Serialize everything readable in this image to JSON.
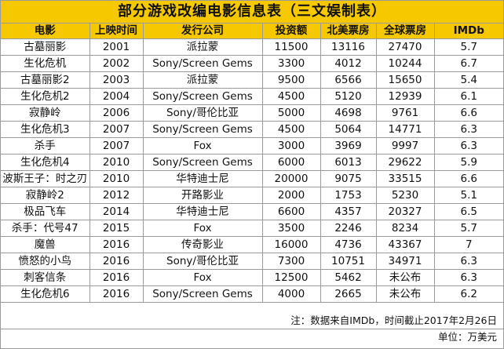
{
  "title": "部分游戏改编电影信息表（三文娱制表）",
  "colors": {
    "header_bg": "#f5c800",
    "border": "#9a9a9a"
  },
  "columns": [
    "电影",
    "上映时间",
    "发行公司",
    "投资额",
    "北美票房",
    "全球票房",
    "IMDb"
  ],
  "rows": [
    [
      "古墓丽影",
      "2001",
      "派拉蒙",
      "11500",
      "13116",
      "27470",
      "5.7"
    ],
    [
      "生化危机",
      "2002",
      "Sony/Screen Gems",
      "3300",
      "4012",
      "10244",
      "6.7"
    ],
    [
      "古墓丽影2",
      "2003",
      "派拉蒙",
      "9500",
      "6566",
      "15650",
      "5.4"
    ],
    [
      "生化危机2",
      "2004",
      "Sony/Screen Gems",
      "4500",
      "5120",
      "12939",
      "6.1"
    ],
    [
      "寂静岭",
      "2006",
      "Sony/哥伦比亚",
      "5000",
      "4698",
      "9761",
      "6.6"
    ],
    [
      "生化危机3",
      "2007",
      "Sony/Screen Gems",
      "4500",
      "5064",
      "14771",
      "6.3"
    ],
    [
      "杀手",
      "2007",
      "Fox",
      "3000",
      "3969",
      "9997",
      "6.3"
    ],
    [
      "生化危机4",
      "2010",
      "Sony/Screen Gems",
      "6000",
      "6013",
      "29622",
      "5.9"
    ],
    [
      "波斯王子：时之刃",
      "2010",
      "华特迪士尼",
      "20000",
      "9075",
      "33515",
      "6.6"
    ],
    [
      "寂静岭2",
      "2012",
      "开路影业",
      "2000",
      "1753",
      "5230",
      "5.1"
    ],
    [
      "极品飞车",
      "2014",
      "华特迪士尼",
      "6600",
      "4357",
      "20327",
      "6.5"
    ],
    [
      "杀手：代号47",
      "2015",
      "Fox",
      "3500",
      "2246",
      "8234",
      "5.7"
    ],
    [
      "魔兽",
      "2016",
      "传奇影业",
      "16000",
      "4736",
      "43367",
      "7"
    ],
    [
      "愤怒的小鸟",
      "2016",
      "Sony/哥伦比亚",
      "7300",
      "10751",
      "34971",
      "6.3"
    ],
    [
      "刺客信条",
      "2016",
      "Fox",
      "12500",
      "5462",
      "未公布",
      "6.3"
    ],
    [
      "生化危机6",
      "2016",
      "Sony/Screen Gems",
      "4000",
      "2665",
      "未公布",
      "6.2"
    ]
  ],
  "notes": {
    "source": "注：数据来自IMDb，时间截止2017年2月26日",
    "unit": "单位：万美元"
  }
}
